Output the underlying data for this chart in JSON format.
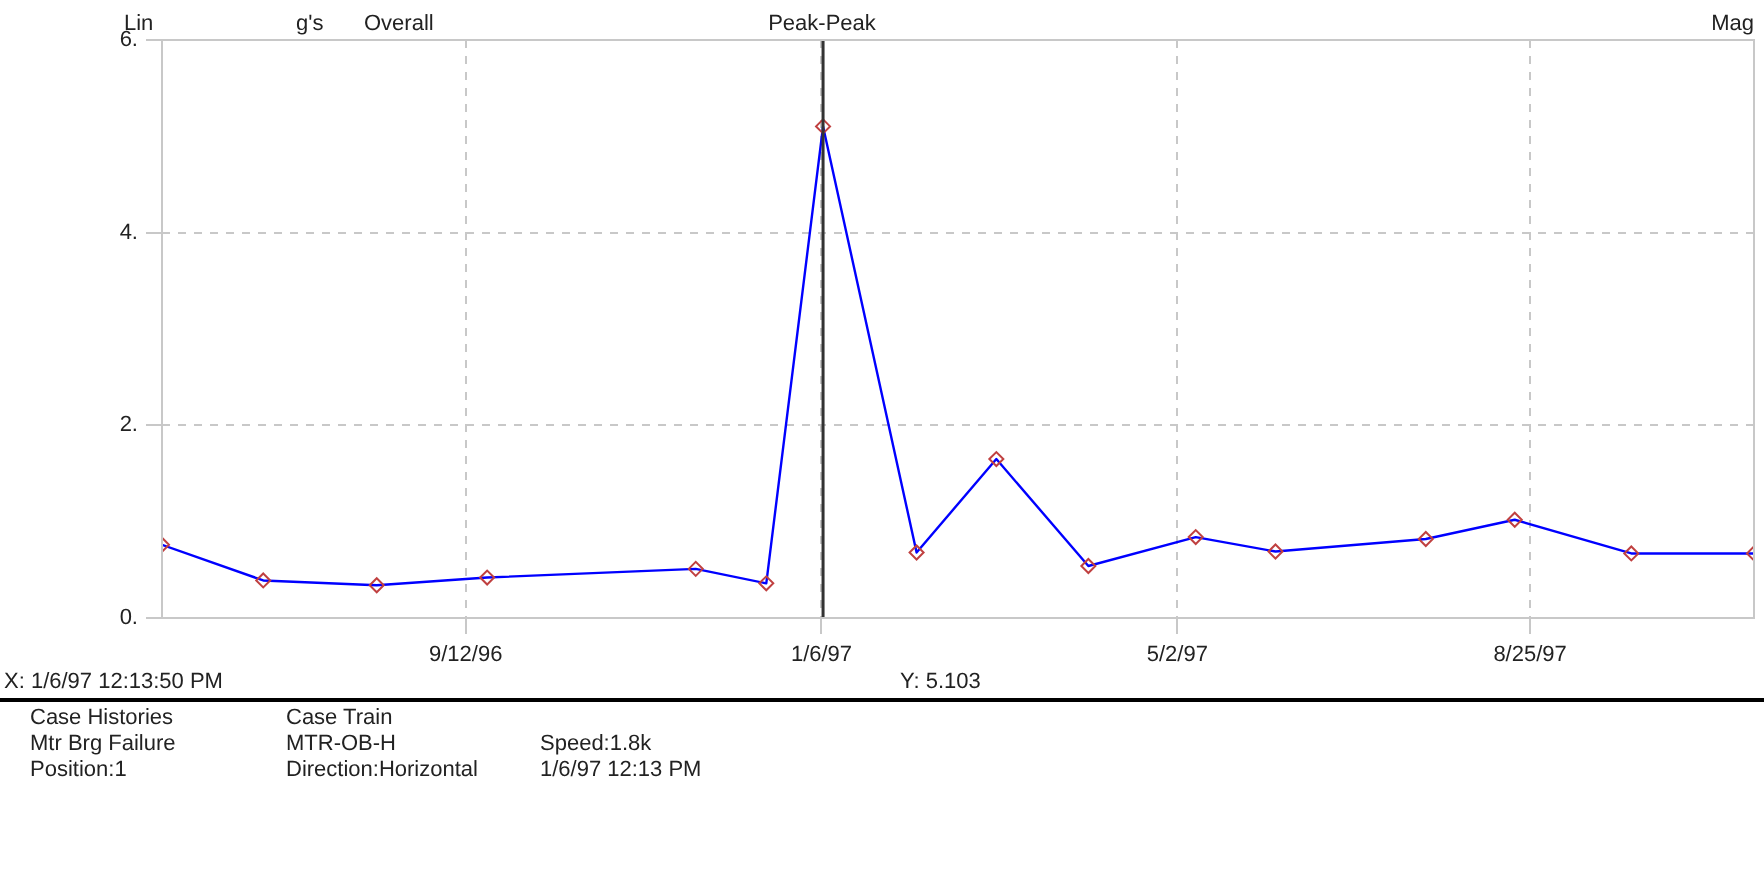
{
  "chart_data": {
    "type": "line",
    "x": [
      "1996-06-05",
      "1996-07-08",
      "1996-08-14",
      "1996-09-19",
      "1996-11-26",
      "1996-12-19",
      "1997-01-06T12:13",
      "1997-02-06",
      "1997-03-04",
      "1997-04-03",
      "1997-05-08",
      "1997-06-03",
      "1997-07-22",
      "1997-08-20",
      "1997-09-27",
      "1997-11-06"
    ],
    "series": [
      {
        "color": "#0000ff",
        "colors": [
          "#c04040",
          "#c04040",
          "#c04040",
          "#c04040",
          "#c04040",
          "#c04040",
          "#c04040",
          "#c04040",
          "#c04040",
          "#c04040",
          "#c04040",
          "#c04040",
          "#c04040",
          "#c04040",
          "#c04040",
          "#c04040"
        ],
        "values": [
          0.76,
          0.39,
          0.34,
          0.42,
          0.51,
          0.36,
          5.103,
          0.68,
          1.65,
          0.54,
          0.84,
          0.69,
          0.82,
          1.02,
          0.67,
          0.67
        ]
      }
    ],
    "xlim": [
      "1996-06-05",
      "1997-11-06"
    ],
    "xticks": [
      {
        "value": "1996-09-12",
        "label": "9/12/96"
      },
      {
        "value": "1997-01-06",
        "label": "1/6/97"
      },
      {
        "value": "1997-05-02",
        "label": "5/2/97"
      },
      {
        "value": "1997-08-25",
        "label": "8/25/97"
      }
    ],
    "ylim": [
      0,
      6
    ],
    "yticks": [
      {
        "value": 0,
        "label": "0."
      },
      {
        "value": 2,
        "label": "2."
      },
      {
        "value": 4,
        "label": "4."
      },
      {
        "value": 6,
        "label": "6."
      }
    ],
    "grid": true,
    "marker": "diamond",
    "line_style": "solid",
    "legend": false,
    "ref_lines": [
      {
        "axis": "x",
        "value": "1997-01-06T12:13",
        "color": "#333333"
      }
    ],
    "annotations": [
      "Lin",
      "g's",
      "Overall",
      "Peak-Peak",
      "Mag",
      "X: 1/6/97 12:13:50 PM",
      "Y: 5.103",
      "Case Histories",
      "Case Train",
      "Mtr Brg Failure",
      "MTR-OB-H",
      "Speed:1.8k",
      "Position:1",
      "Direction:Horizontal",
      "1/6/97 12:13 PM"
    ]
  }
}
